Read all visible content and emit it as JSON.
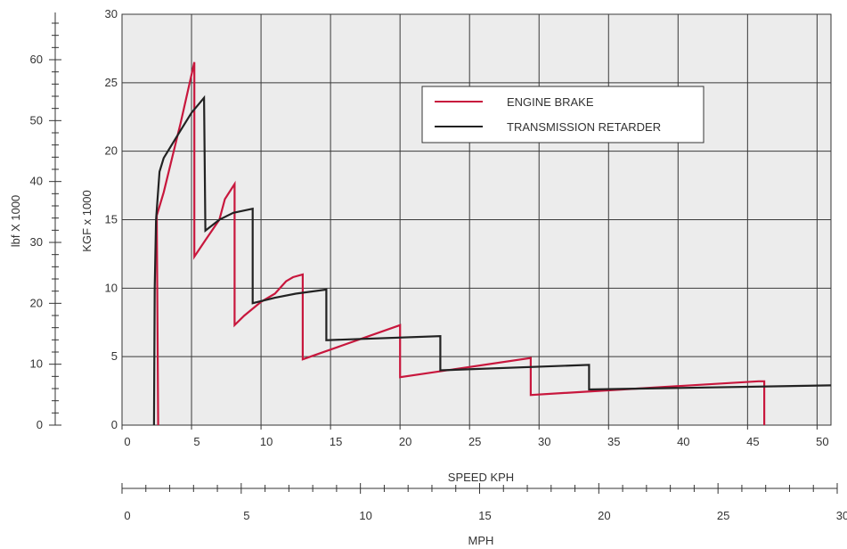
{
  "chart_data": {
    "type": "line",
    "ylabel": "KGF x 1000",
    "ylabel_secondary": "lbf X 1000",
    "xlabel": "SPEED KPH",
    "xlabel_secondary": "MPH",
    "xlim": [
      0,
      51
    ],
    "ylim": [
      0,
      30
    ],
    "xlim_secondary": [
      0,
      30
    ],
    "ylim_secondary": [
      0,
      66
    ],
    "x_ticks": [
      0,
      5,
      10,
      15,
      20,
      25,
      30,
      35,
      40,
      45,
      50
    ],
    "y_ticks": [
      0,
      5,
      10,
      15,
      20,
      25,
      30
    ],
    "x2_ticks": [
      0,
      5,
      10,
      15,
      20,
      25,
      30
    ],
    "y2_ticks": [
      0,
      10,
      20,
      30,
      40,
      50,
      60
    ],
    "grid": true,
    "legend_position": "top-right",
    "series": [
      {
        "name": "ENGINE BRAKE",
        "color": "#c8173d",
        "points": [
          [
            2.6,
            0
          ],
          [
            2.5,
            15.3
          ],
          [
            3.0,
            17.0
          ],
          [
            3.6,
            19.5
          ],
          [
            4.2,
            22.0
          ],
          [
            5.2,
            26.5
          ],
          [
            5.2,
            12.3
          ],
          [
            6.0,
            13.5
          ],
          [
            7.0,
            15.0
          ],
          [
            7.4,
            16.5
          ],
          [
            8.1,
            17.6
          ],
          [
            8.1,
            7.3
          ],
          [
            8.8,
            8.0
          ],
          [
            10.0,
            9.0
          ],
          [
            11.0,
            9.6
          ],
          [
            11.8,
            10.5
          ],
          [
            12.3,
            10.8
          ],
          [
            13.0,
            11.0
          ],
          [
            13.0,
            4.8
          ],
          [
            20.0,
            7.3
          ],
          [
            20.0,
            3.5
          ],
          [
            29.4,
            4.9
          ],
          [
            29.4,
            2.2
          ],
          [
            45.8,
            3.2
          ],
          [
            46.2,
            3.2
          ],
          [
            46.2,
            0
          ]
        ]
      },
      {
        "name": "TRANSMISSION RETARDER",
        "color": "#222222",
        "points": [
          [
            2.3,
            0
          ],
          [
            2.35,
            10.0
          ],
          [
            2.45,
            15.0
          ],
          [
            2.7,
            18.5
          ],
          [
            3.0,
            19.5
          ],
          [
            4.2,
            21.5
          ],
          [
            5.0,
            22.8
          ],
          [
            5.9,
            23.9
          ],
          [
            6.0,
            14.2
          ],
          [
            7.0,
            15.0
          ],
          [
            8.0,
            15.5
          ],
          [
            9.4,
            15.8
          ],
          [
            9.4,
            8.9
          ],
          [
            11.0,
            9.3
          ],
          [
            12.5,
            9.6
          ],
          [
            14.7,
            9.9
          ],
          [
            14.7,
            6.2
          ],
          [
            22.9,
            6.5
          ],
          [
            22.9,
            4.0
          ],
          [
            33.6,
            4.4
          ],
          [
            33.6,
            2.6
          ],
          [
            51.0,
            2.9
          ]
        ]
      }
    ]
  }
}
